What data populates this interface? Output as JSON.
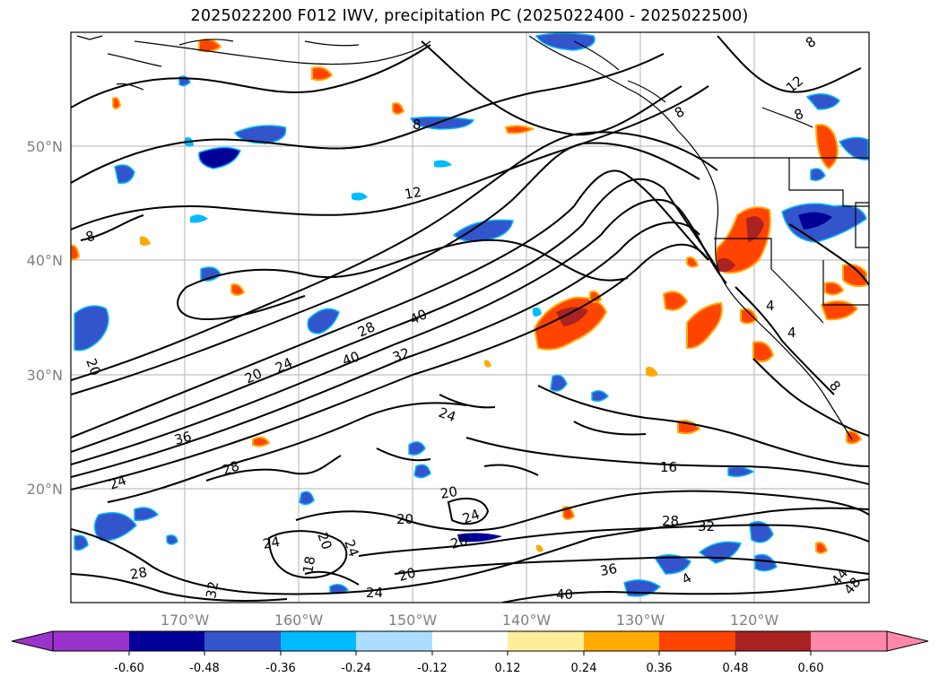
{
  "title": "2025022200 F012 IWV, precipitation PC (2025022400 - 2025022500)",
  "map": {
    "lat_labels": [
      "50°N",
      "40°N",
      "30°N",
      "20°N"
    ],
    "lon_labels": [
      "170°W",
      "160°W",
      "150°W",
      "140°W",
      "130°W",
      "120°W"
    ],
    "contour_labels": [
      {
        "text": "8"
      },
      {
        "text": "8"
      },
      {
        "text": "8"
      },
      {
        "text": "8"
      },
      {
        "text": "12"
      },
      {
        "text": "12"
      },
      {
        "text": "8"
      },
      {
        "text": "20"
      },
      {
        "text": "28"
      },
      {
        "text": "40"
      },
      {
        "text": "20"
      },
      {
        "text": "24"
      },
      {
        "text": "40"
      },
      {
        "text": "32"
      },
      {
        "text": "24"
      },
      {
        "text": "36"
      },
      {
        "text": "28"
      },
      {
        "text": "24"
      },
      {
        "text": "16"
      },
      {
        "text": "20"
      },
      {
        "text": "20"
      },
      {
        "text": "24"
      },
      {
        "text": "20"
      },
      {
        "text": "28"
      },
      {
        "text": "32"
      },
      {
        "text": "24"
      },
      {
        "text": "20"
      },
      {
        "text": "36"
      },
      {
        "text": "28"
      },
      {
        "text": "24"
      },
      {
        "text": "20"
      },
      {
        "text": "18"
      },
      {
        "text": "24"
      },
      {
        "text": "32"
      },
      {
        "text": "40"
      },
      {
        "text": "4"
      },
      {
        "text": "4"
      },
      {
        "text": "44"
      },
      {
        "text": "48"
      },
      {
        "text": "4"
      },
      {
        "text": "8"
      }
    ]
  },
  "colorbar": {
    "colors": [
      "#9933cc",
      "#000099",
      "#3355cc",
      "#00bbff",
      "#aaddff",
      "#ffffff",
      "#ffee99",
      "#ffaa00",
      "#ff4400",
      "#aa2222",
      "#ff88aa"
    ],
    "ticks": [
      "-0.60",
      "-0.48",
      "-0.36",
      "-0.24",
      "-0.12",
      "0.12",
      "0.24",
      "0.36",
      "0.48",
      "0.60"
    ]
  }
}
